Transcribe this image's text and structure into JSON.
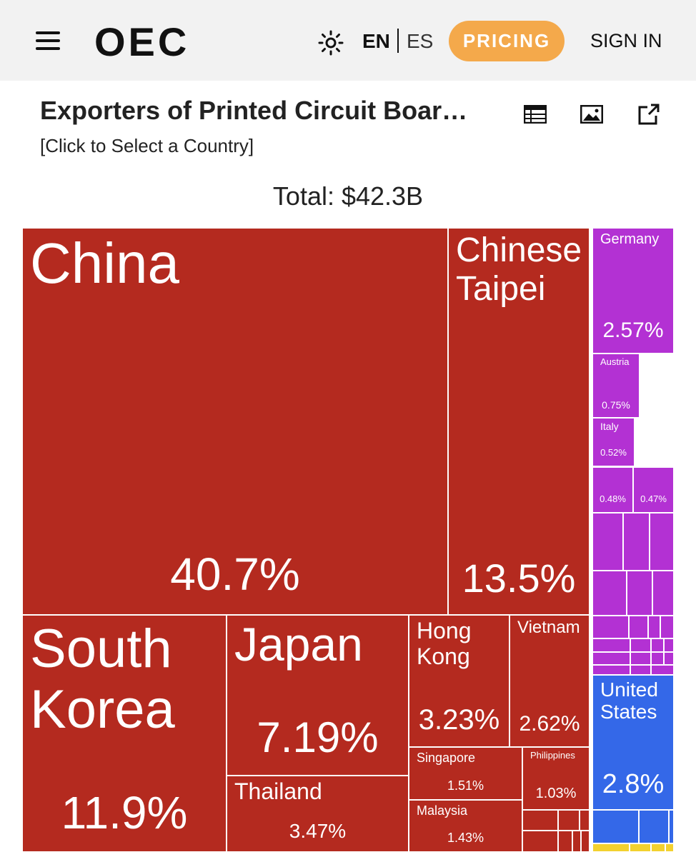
{
  "header": {
    "logo": "OEC",
    "languages": [
      "EN",
      "ES"
    ],
    "pricing": "PRICING",
    "sign_in": "SIGN IN"
  },
  "chart_data": {
    "type": "treemap",
    "title": "Exporters of Printed Circuit Boar…",
    "subtitle": "[Click to Select a Country]",
    "total": "Total: $42.3B",
    "categories": [
      "China",
      "Chinese Taipei",
      "South Korea",
      "Japan",
      "Thailand",
      "Hong Kong",
      "Vietnam",
      "United States",
      "Germany",
      "Singapore",
      "Malaysia",
      "Philippines",
      "Austria",
      "Italy",
      null,
      null
    ],
    "values": [
      40.7,
      13.5,
      11.9,
      7.19,
      3.47,
      3.23,
      2.62,
      2.8,
      2.57,
      1.51,
      1.43,
      1.03,
      0.75,
      0.52,
      0.48,
      0.47
    ],
    "value_labels": [
      "40.7%",
      "13.5%",
      "11.9%",
      "7.19%",
      "3.47%",
      "3.23%",
      "2.62%",
      "2.8%",
      "2.57%",
      "1.51%",
      "1.43%",
      "1.03%",
      "0.75%",
      "0.52%",
      "0.48%",
      "0.47%"
    ],
    "colors": [
      "#b42a1f",
      "#b42a1f",
      "#b42a1f",
      "#b42a1f",
      "#b42a1f",
      "#b42a1f",
      "#b42a1f",
      "#3468e8",
      "#b331d3",
      "#b42a1f",
      "#b42a1f",
      "#b42a1f",
      "#b331d3",
      "#b331d3",
      "#b331d3",
      "#b331d3"
    ]
  }
}
